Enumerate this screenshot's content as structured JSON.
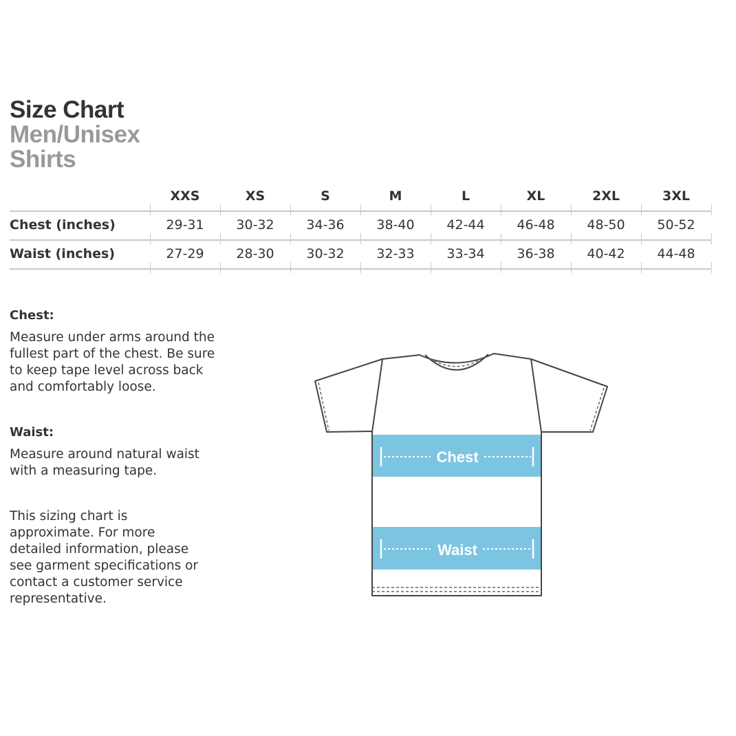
{
  "title": {
    "line1": "Size Chart",
    "line2": "Men/Unisex",
    "line3": "Shirts"
  },
  "table": {
    "sizes": [
      "XXS",
      "XS",
      "S",
      "M",
      "L",
      "XL",
      "2XL",
      "3XL"
    ],
    "rows": [
      {
        "label": "Chest (inches)",
        "values": [
          "29-31",
          "30-32",
          "34-36",
          "38-40",
          "42-44",
          "46-48",
          "48-50",
          "50-52"
        ]
      },
      {
        "label": "Waist (inches)",
        "values": [
          "27-29",
          "28-30",
          "30-32",
          "32-33",
          "33-34",
          "36-38",
          "40-42",
          "44-48"
        ]
      }
    ]
  },
  "instructions": {
    "chest_heading": "Chest:",
    "chest_lines": [
      "Measure under arms around the",
      "fullest part of the chest. Be sure",
      "to keep tape level across back",
      "and comfortably loose."
    ],
    "waist_heading": "Waist:",
    "waist_lines": [
      "Measure around natural waist",
      "with a measuring tape."
    ],
    "note_lines": [
      "This sizing chart is",
      "approximate. For more",
      "detailed information, please",
      "see garment specifications or",
      "contact a customer service",
      "representative."
    ]
  },
  "diagram": {
    "chest_label": "Chest",
    "waist_label": "Waist",
    "band_color": "#7cc5e2",
    "outline_color": "#444444"
  }
}
